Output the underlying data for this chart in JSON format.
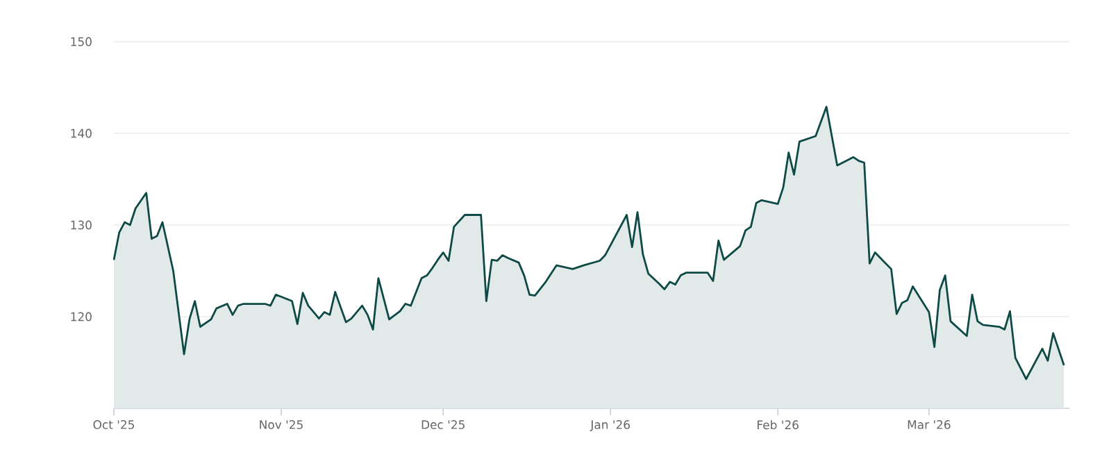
{
  "chart_data": {
    "type": "area",
    "x": [
      "2025-10-01",
      "2025-10-02",
      "2025-10-03",
      "2025-10-04",
      "2025-10-05",
      "2025-10-07",
      "2025-10-08",
      "2025-10-09",
      "2025-10-10",
      "2025-10-12",
      "2025-10-14",
      "2025-10-15",
      "2025-10-16",
      "2025-10-17",
      "2025-10-19",
      "2025-10-20",
      "2025-10-22",
      "2025-10-23",
      "2025-10-24",
      "2025-10-25",
      "2025-10-28",
      "2025-10-29",
      "2025-10-30",
      "2025-10-31",
      "2025-11-03",
      "2025-11-04",
      "2025-11-05",
      "2025-11-06",
      "2025-11-08",
      "2025-11-09",
      "2025-11-10",
      "2025-11-11",
      "2025-11-13",
      "2025-11-14",
      "2025-11-15",
      "2025-11-16",
      "2025-11-17",
      "2025-11-18",
      "2025-11-19",
      "2025-11-21",
      "2025-11-23",
      "2025-11-24",
      "2025-11-25",
      "2025-11-27",
      "2025-11-28",
      "2025-11-29",
      "2025-11-30",
      "2025-12-01",
      "2025-12-02",
      "2025-12-03",
      "2025-12-05",
      "2025-12-08",
      "2025-12-09",
      "2025-12-10",
      "2025-12-11",
      "2025-12-12",
      "2025-12-13",
      "2025-12-15",
      "2025-12-16",
      "2025-12-17",
      "2025-12-18",
      "2025-12-20",
      "2025-12-22",
      "2025-12-25",
      "2025-12-27",
      "2025-12-30",
      "2025-12-31",
      "2026-01-04",
      "2026-01-05",
      "2026-01-06",
      "2026-01-07",
      "2026-01-08",
      "2026-01-10",
      "2026-01-11",
      "2026-01-12",
      "2026-01-13",
      "2026-01-14",
      "2026-01-15",
      "2026-01-19",
      "2026-01-20",
      "2026-01-21",
      "2026-01-22",
      "2026-01-25",
      "2026-01-26",
      "2026-01-27",
      "2026-01-28",
      "2026-01-29",
      "2026-02-01",
      "2026-02-02",
      "2026-02-03",
      "2026-02-04",
      "2026-02-05",
      "2026-02-08",
      "2026-02-10",
      "2026-02-12",
      "2026-02-15",
      "2026-02-16",
      "2026-02-17",
      "2026-02-18",
      "2026-02-19",
      "2026-02-22",
      "2026-02-23",
      "2026-02-24",
      "2026-02-25",
      "2026-02-26",
      "2026-03-01",
      "2026-03-02",
      "2026-03-03",
      "2026-03-04",
      "2026-03-05",
      "2026-03-08",
      "2026-03-09",
      "2026-03-10",
      "2026-03-11",
      "2026-03-14",
      "2026-03-15",
      "2026-03-16",
      "2026-03-17",
      "2026-03-19",
      "2026-03-22",
      "2026-03-23",
      "2026-03-24",
      "2026-03-26"
    ],
    "series": [
      {
        "color": "#0e4a45",
        "values": [
          126.2,
          129.2,
          130.3,
          130.0,
          131.8,
          133.5,
          128.5,
          128.8,
          130.3,
          125.0,
          115.9,
          119.7,
          121.7,
          118.9,
          119.7,
          120.9,
          121.4,
          120.2,
          121.2,
          121.4,
          121.4,
          121.4,
          121.2,
          122.4,
          121.7,
          119.2,
          122.6,
          121.2,
          119.8,
          120.5,
          120.2,
          122.7,
          119.4,
          119.8,
          120.5,
          121.2,
          120.2,
          118.6,
          124.2,
          119.7,
          120.6,
          121.4,
          121.2,
          124.2,
          124.5,
          125.3,
          126.2,
          127.0,
          126.1,
          129.8,
          131.1,
          131.1,
          121.7,
          126.2,
          126.1,
          126.7,
          126.4,
          125.9,
          124.5,
          122.4,
          122.3,
          123.8,
          125.6,
          125.2,
          125.6,
          126.1,
          126.7,
          131.1,
          127.6,
          131.4,
          126.8,
          124.7,
          123.6,
          123.0,
          123.8,
          123.5,
          124.5,
          124.8,
          124.8,
          123.9,
          128.3,
          126.2,
          127.7,
          129.4,
          129.8,
          132.4,
          132.7,
          132.3,
          134.1,
          137.9,
          135.5,
          139.1,
          139.7,
          142.9,
          136.5,
          137.4,
          137.0,
          136.8,
          125.8,
          127.0,
          125.2,
          120.3,
          121.5,
          121.8,
          123.3,
          120.5,
          116.7,
          122.9,
          124.5,
          119.5,
          117.9,
          122.4,
          119.5,
          119.1,
          118.9,
          118.6,
          120.6,
          115.5,
          113.2,
          116.5,
          115.2,
          118.2,
          114.7
        ]
      }
    ],
    "xlim": [
      "2025-10-01",
      "2026-03-27"
    ],
    "xticks": [
      {
        "value": "2025-10-01",
        "label": "Oct '25"
      },
      {
        "value": "2025-11-01",
        "label": "Nov '25"
      },
      {
        "value": "2025-12-01",
        "label": "Dec '25"
      },
      {
        "value": "2026-01-01",
        "label": "Jan '26"
      },
      {
        "value": "2026-02-01",
        "label": "Feb '26"
      },
      {
        "value": "2026-03-01",
        "label": "Mar '26"
      }
    ],
    "ylim": [
      110,
      150
    ],
    "yticks": [
      120,
      130,
      140,
      150
    ],
    "grid": "y"
  }
}
